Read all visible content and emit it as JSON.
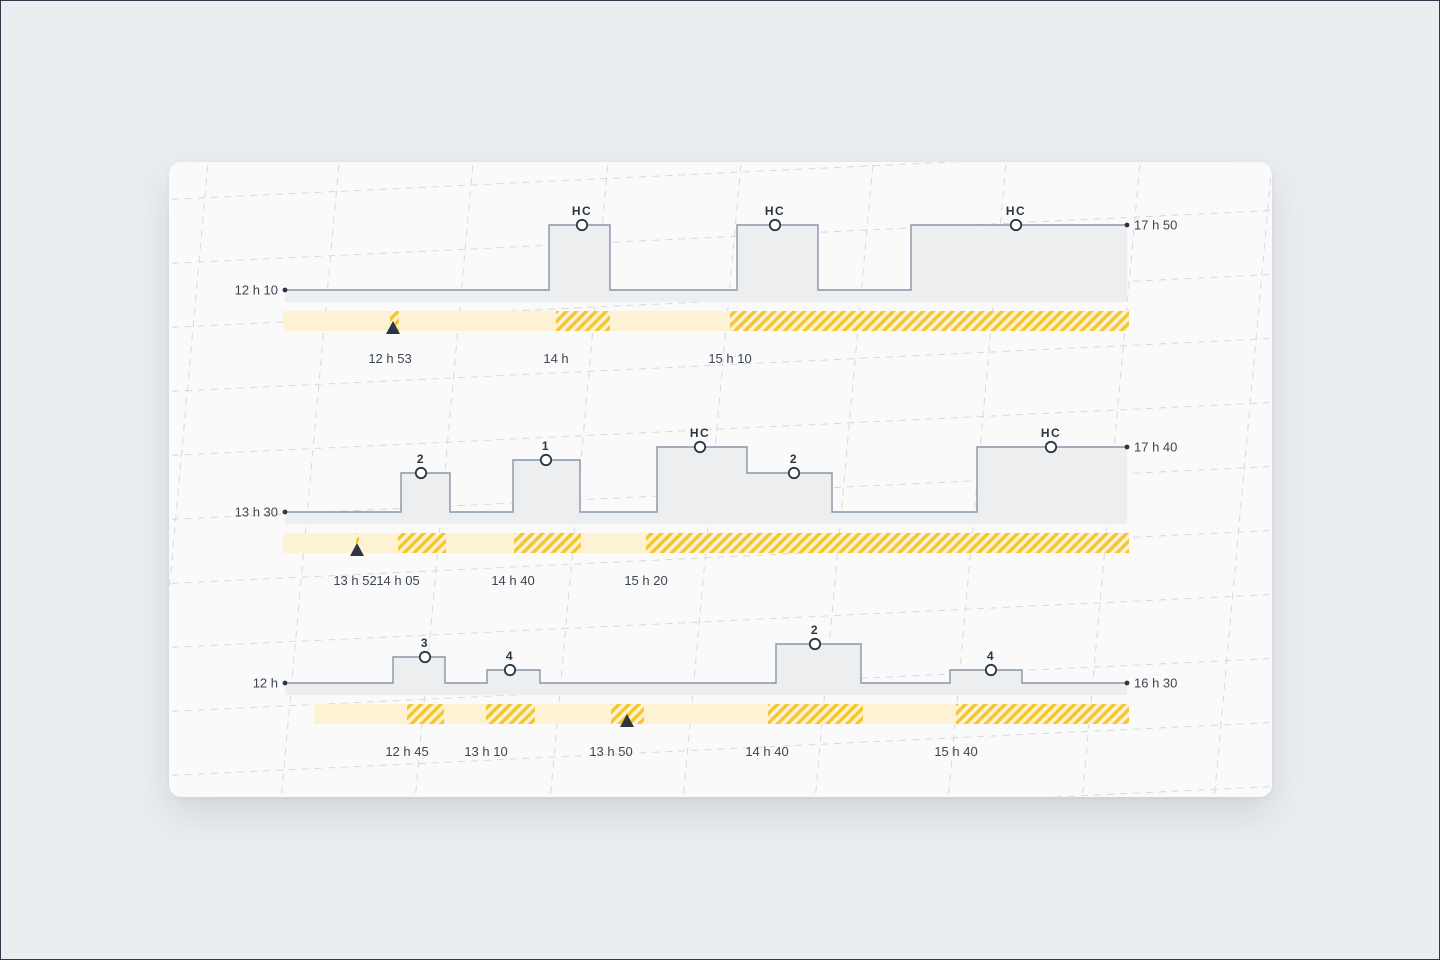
{
  "colors": {
    "background": "#ebeef1",
    "card": "#fafafa",
    "grid": "#d6d9dd",
    "step_fill": "#eceef0",
    "step_line": "#8796a6",
    "bar_base": "#fdf2d3",
    "bar_hatch": "#f5c62f",
    "marker": "#2c3642",
    "text": "#3c4652"
  },
  "rows": [
    {
      "start_label": "12 h 10",
      "end_label": "17 h 50",
      "blocks": [
        {
          "tag": "HC"
        },
        {
          "tag": "HC"
        },
        {
          "tag": "HC"
        }
      ],
      "time_labels": [
        "12 h 53",
        "14 h",
        "15 h 10"
      ],
      "marker": "now-triangle"
    },
    {
      "start_label": "13 h 30",
      "end_label": "17 h 40",
      "blocks": [
        {
          "tag": "2"
        },
        {
          "tag": "1"
        },
        {
          "tag": "HC"
        },
        {
          "tag": "2"
        },
        {
          "tag": "HC"
        }
      ],
      "time_labels": [
        "13 h 52",
        "14 h 05",
        "14 h 40",
        "15 h 20"
      ],
      "marker": "now-triangle"
    },
    {
      "start_label": "12 h",
      "end_label": "16 h 30",
      "blocks": [
        {
          "tag": "3"
        },
        {
          "tag": "4"
        },
        {
          "tag": "2"
        },
        {
          "tag": "4"
        }
      ],
      "time_labels": [
        "12 h 45",
        "13 h 10",
        "13 h 50",
        "14 h 40",
        "15 h 40"
      ],
      "marker": "now-triangle"
    }
  ]
}
